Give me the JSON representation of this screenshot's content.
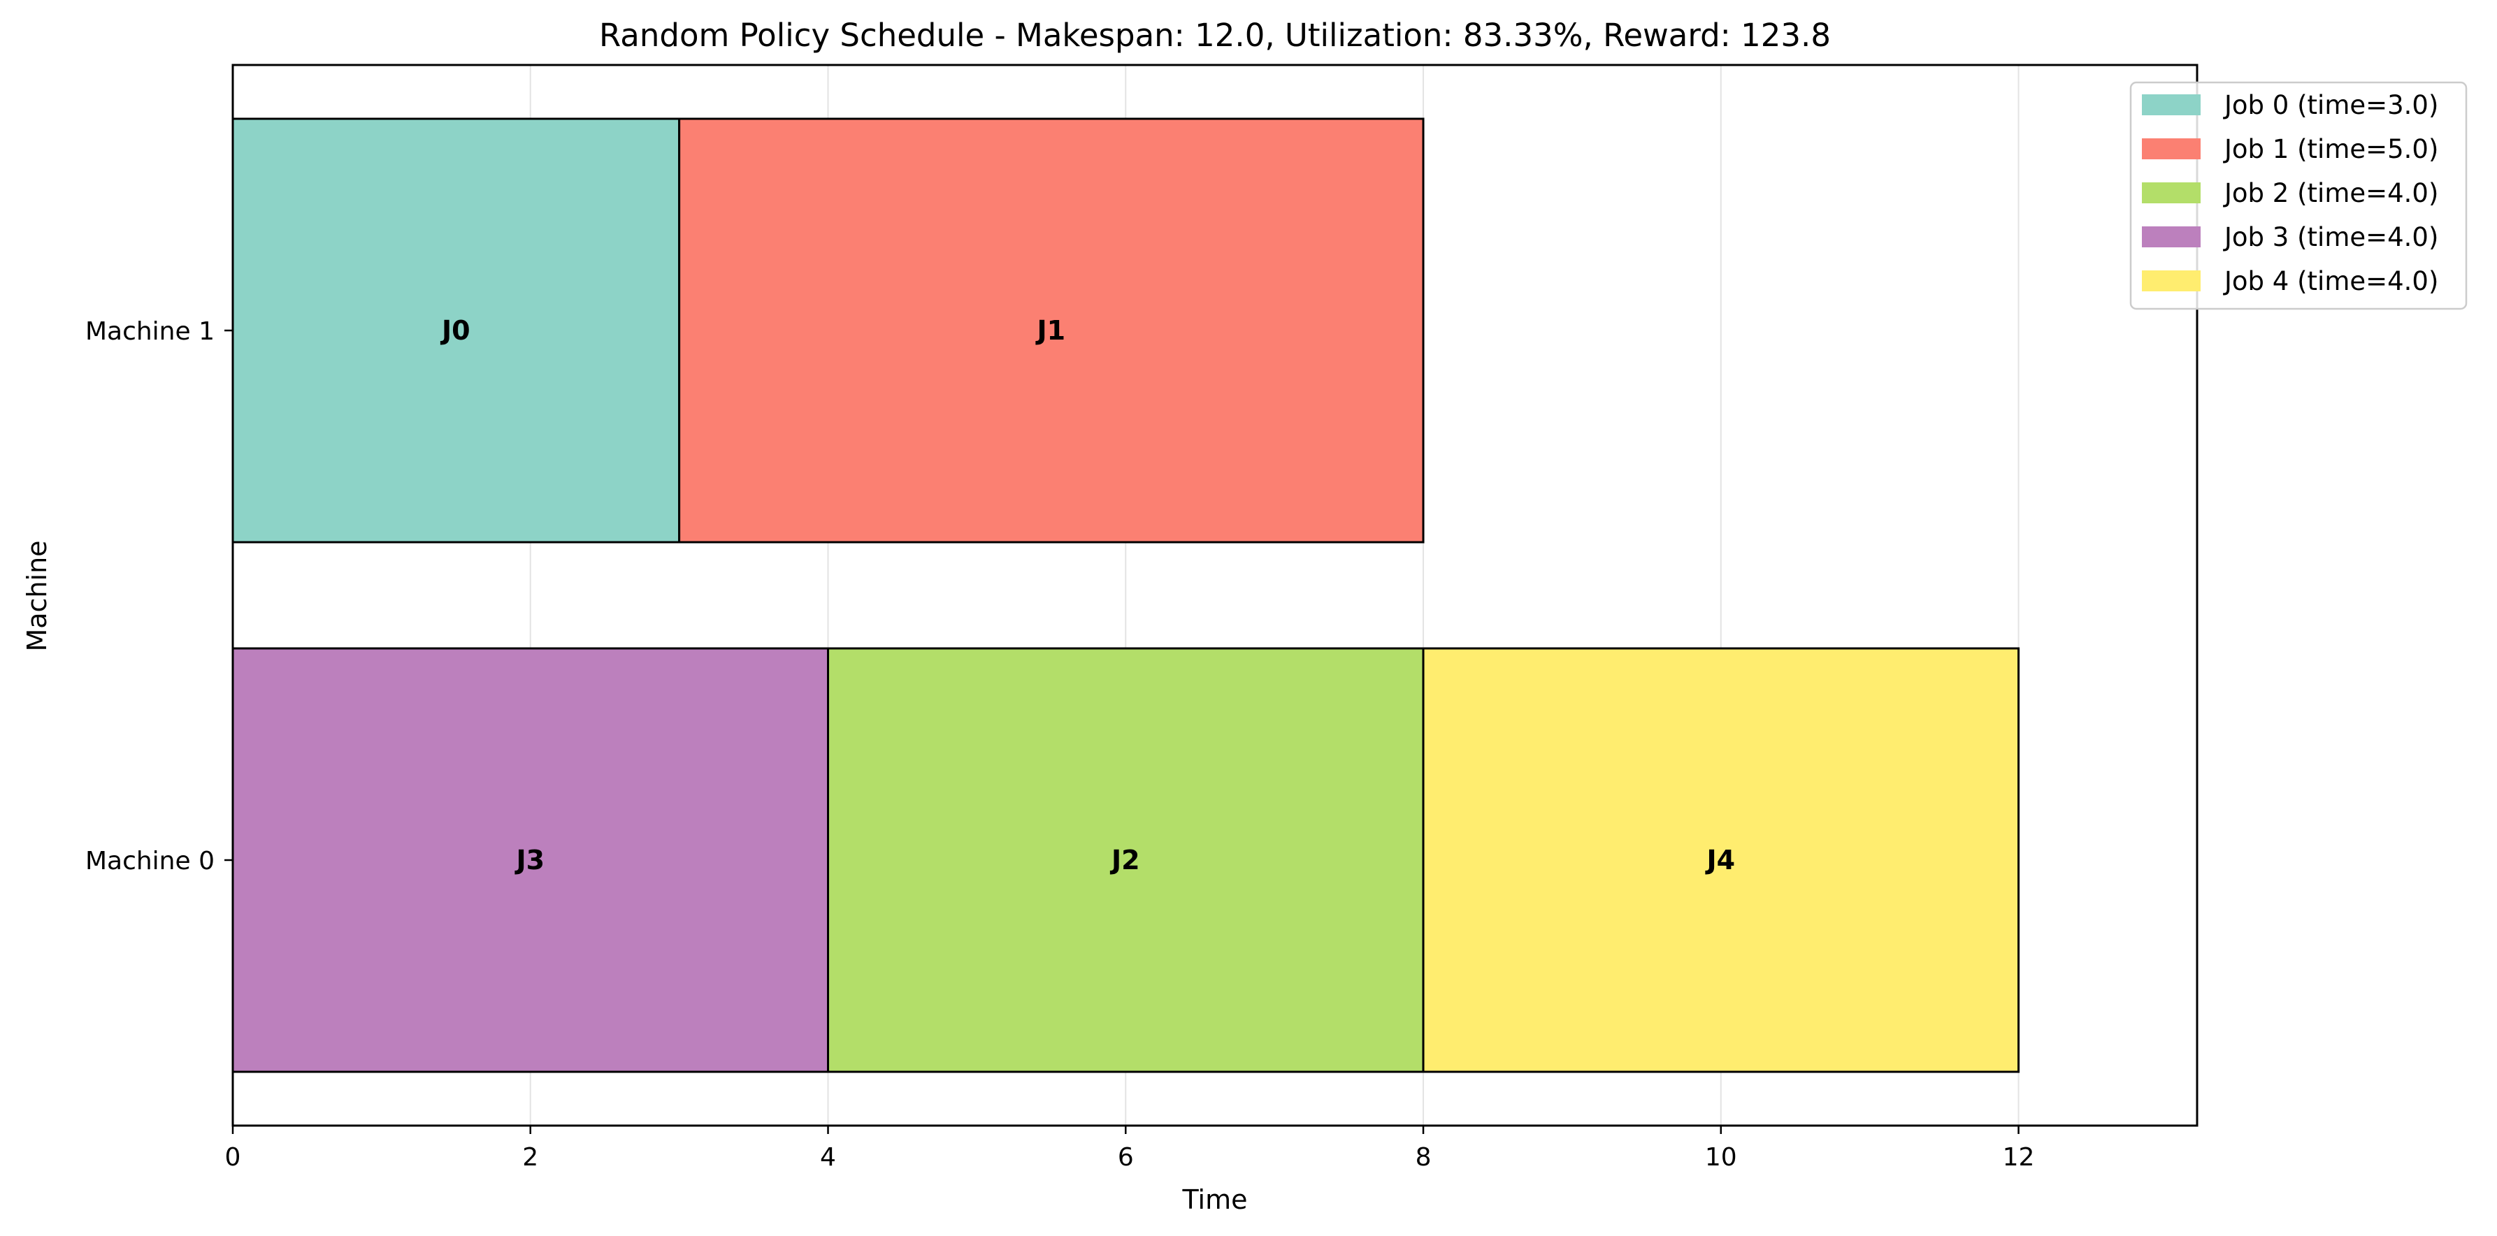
{
  "chart_data": {
    "type": "gantt",
    "title": "Random Policy Schedule - Makespan: 12.0, Utilization: 83.33%, Reward: 123.8",
    "xlabel": "Time",
    "ylabel": "Machine",
    "xlim": [
      0,
      13.2
    ],
    "xticks": [
      0,
      2,
      4,
      6,
      8,
      10,
      12
    ],
    "grid": "vertical",
    "legend_position": "top-right",
    "machines": [
      "Machine 1",
      "Machine 0"
    ],
    "tasks": [
      {
        "machine": "Machine 1",
        "job": "J0",
        "start": 0,
        "end": 3,
        "color": "#8dd3c7"
      },
      {
        "machine": "Machine 1",
        "job": "J1",
        "start": 3,
        "end": 8,
        "color": "#fb8072"
      },
      {
        "machine": "Machine 0",
        "job": "J3",
        "start": 0,
        "end": 4,
        "color": "#bc80bd"
      },
      {
        "machine": "Machine 0",
        "job": "J2",
        "start": 4,
        "end": 8,
        "color": "#b3de69"
      },
      {
        "machine": "Machine 0",
        "job": "J4",
        "start": 8,
        "end": 12,
        "color": "#ffed6f"
      }
    ],
    "legend": [
      {
        "label": "Job 0 (time=3.0)",
        "color": "#8dd3c7"
      },
      {
        "label": "Job 1 (time=5.0)",
        "color": "#fb8072"
      },
      {
        "label": "Job 2 (time=4.0)",
        "color": "#b3de69"
      },
      {
        "label": "Job 3 (time=4.0)",
        "color": "#bc80bd"
      },
      {
        "label": "Job 4 (time=4.0)",
        "color": "#ffed6f"
      }
    ]
  }
}
